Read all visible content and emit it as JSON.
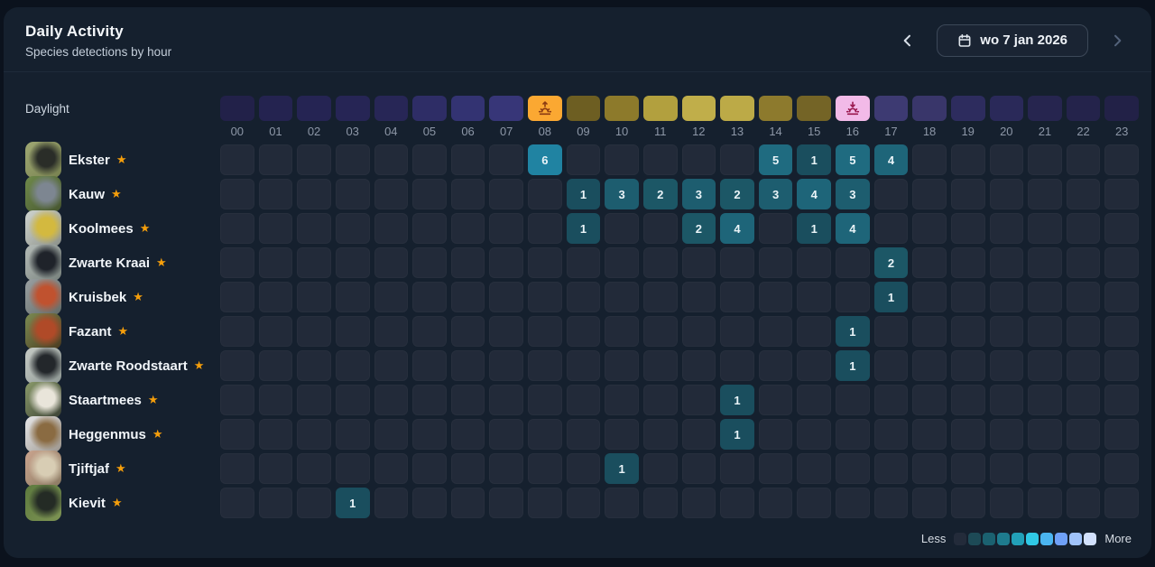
{
  "header": {
    "title": "Daily Activity",
    "subtitle": "Species detections by hour",
    "date_label": "wo 7 jan 2026"
  },
  "daylight": {
    "label": "Daylight",
    "hour_colors": [
      "#222149",
      "#242350",
      "#252453",
      "#262555",
      "#272656",
      "#2e2d66",
      "#333372",
      "#373678",
      "#fba832",
      "#6d5e22",
      "#8d7a2b",
      "#b2a03e",
      "#c0ae4a",
      "#bcaa47",
      "#8d7a2d",
      "#746426",
      "#f2bae8",
      "#3d3a72",
      "#39366a",
      "#2d2c5e",
      "#2a2959",
      "#26254f",
      "#24234b",
      "#222147"
    ],
    "sunrise_hour": 8,
    "sunset_hour": 16,
    "sunrise_icon_color": "#8a3a12",
    "sunset_icon_color": "#99174d"
  },
  "hours": [
    "00",
    "01",
    "02",
    "03",
    "04",
    "05",
    "06",
    "07",
    "08",
    "09",
    "10",
    "11",
    "12",
    "13",
    "14",
    "15",
    "16",
    "17",
    "18",
    "19",
    "20",
    "21",
    "22",
    "23"
  ],
  "value_colors": {
    "1": "#1a4e5e",
    "2": "#1c5766",
    "3": "#1d5d6f",
    "4": "#1e6579",
    "5": "#1f6b80",
    "6": "#2083a2"
  },
  "species": [
    {
      "name": "Ekster",
      "thumb_colors": [
        "#9fa873",
        "#2a2d28",
        "#77814f"
      ],
      "detections": {
        "8": 6,
        "14": 5,
        "15": 1,
        "16": 5,
        "17": 4
      }
    },
    {
      "name": "Kauw",
      "thumb_colors": [
        "#6f8a4a",
        "#7d8691",
        "#45542f"
      ],
      "detections": {
        "9": 1,
        "10": 3,
        "11": 2,
        "12": 3,
        "13": 2,
        "14": 3,
        "15": 4,
        "16": 3
      }
    },
    {
      "name": "Koolmees",
      "thumb_colors": [
        "#cfd4cf",
        "#d3b93f",
        "#8a8f88"
      ],
      "detections": {
        "9": 1,
        "12": 2,
        "13": 4,
        "15": 1,
        "16": 4
      }
    },
    {
      "name": "Zwarte Kraai",
      "thumb_colors": [
        "#b3bab6",
        "#1f232a",
        "#78827d"
      ],
      "detections": {
        "17": 2
      }
    },
    {
      "name": "Kruisbek",
      "thumb_colors": [
        "#99a0a2",
        "#c0522f",
        "#626a66"
      ],
      "detections": {
        "17": 1
      }
    },
    {
      "name": "Fazant",
      "thumb_colors": [
        "#7b8b52",
        "#b04a28",
        "#49391f"
      ],
      "detections": {
        "16": 1
      }
    },
    {
      "name": "Zwarte Roodstaart",
      "thumb_colors": [
        "#c6cbc6",
        "#23272b",
        "#8e9894"
      ],
      "detections": {
        "16": 1
      }
    },
    {
      "name": "Staartmees",
      "thumb_colors": [
        "#8a9a6a",
        "#e9e5da",
        "#3a4034"
      ],
      "detections": {
        "13": 1
      }
    },
    {
      "name": "Heggenmus",
      "thumb_colors": [
        "#e6e6e8",
        "#8a6b42",
        "#9a948c"
      ],
      "detections": {
        "13": 1
      }
    },
    {
      "name": "Tjiftjaf",
      "thumb_colors": [
        "#caa48e",
        "#d8cdb4",
        "#8a7a63"
      ],
      "detections": {
        "10": 1
      }
    },
    {
      "name": "Kievit",
      "thumb_colors": [
        "#5d7a3e",
        "#242b25",
        "#7e9454"
      ],
      "detections": {
        "3": 1
      }
    }
  ],
  "legend": {
    "less_label": "Less",
    "more_label": "More",
    "colors": [
      "#232b3a",
      "#1d4a56",
      "#1b6170",
      "#1e7b8e",
      "#22a0b8",
      "#30c9e6",
      "#4bb5f0",
      "#6fa0f7",
      "#a0c3fa",
      "#d2e1fd"
    ]
  },
  "star_color": "#f59e0b"
}
